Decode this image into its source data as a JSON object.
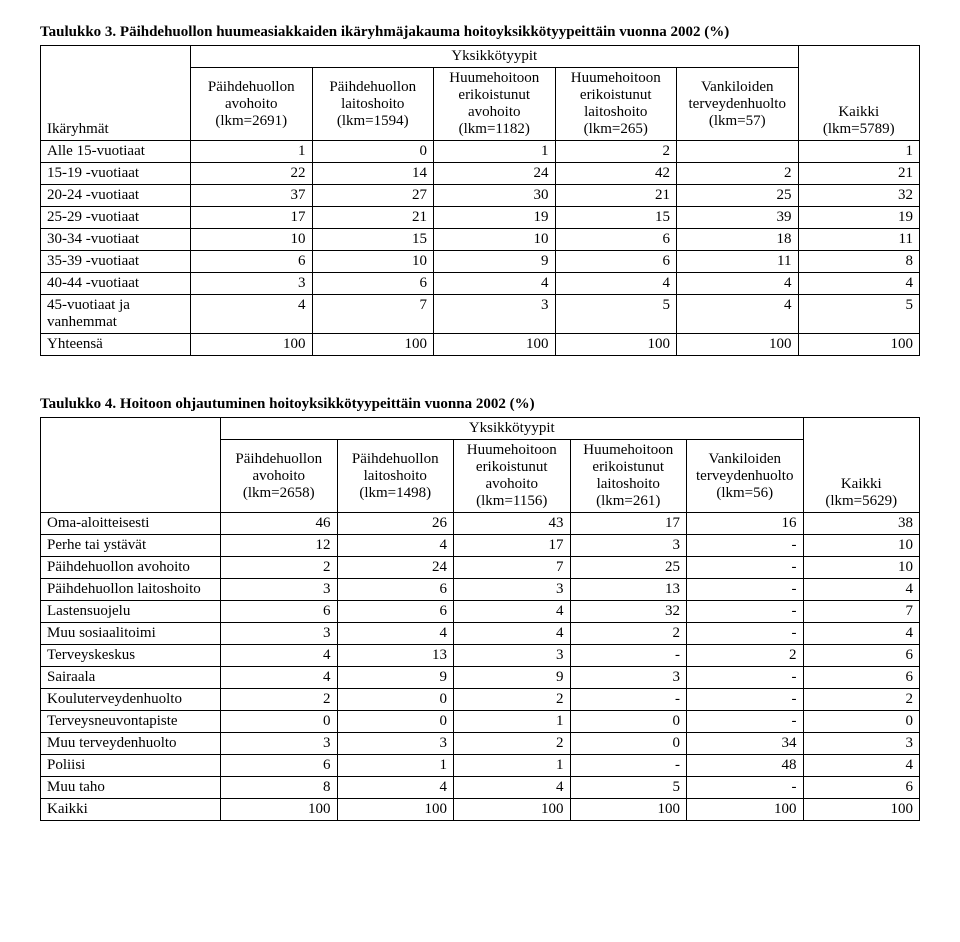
{
  "table3": {
    "title_label": "Taulukko 3.",
    "title_text": "Päihdehuollon huumeasiakkaiden ikäryhmäjakauma hoitoyksikkötyypeittäin vuonna 2002 (%)",
    "rowheader": "Ikäryhmät",
    "superheader": "Yksikkötyypit",
    "columns": [
      "Päihdehuollon avohoito (lkm=2691)",
      "Päihdehuollon laitoshoito (lkm=1594)",
      "Huumehoitoon erikoistunut avohoito (lkm=1182)",
      "Huumehoitoon erikoistunut laitoshoito (lkm=265)",
      "Vankiloiden terveyden­huolto (lkm=57)",
      "Kaikki (lkm=5789)"
    ],
    "rows": [
      {
        "label": "Alle 15-vuotiaat",
        "v": [
          "1",
          "0",
          "1",
          "2",
          "",
          "1"
        ]
      },
      {
        "label": "15-19 -vuotiaat",
        "v": [
          "22",
          "14",
          "24",
          "42",
          "2",
          "21"
        ]
      },
      {
        "label": "20-24 -vuotiaat",
        "v": [
          "37",
          "27",
          "30",
          "21",
          "25",
          "32"
        ]
      },
      {
        "label": "25-29 -vuotiaat",
        "v": [
          "17",
          "21",
          "19",
          "15",
          "39",
          "19"
        ]
      },
      {
        "label": "30-34 -vuotiaat",
        "v": [
          "10",
          "15",
          "10",
          "6",
          "18",
          "11"
        ]
      },
      {
        "label": "35-39 -vuotiaat",
        "v": [
          "6",
          "10",
          "9",
          "6",
          "11",
          "8"
        ]
      },
      {
        "label": "40-44 -vuotiaat",
        "v": [
          "3",
          "6",
          "4",
          "4",
          "4",
          "4"
        ]
      },
      {
        "label": "45-vuotiaat ja vanhemmat",
        "v": [
          "4",
          "7",
          "3",
          "5",
          "4",
          "5"
        ]
      },
      {
        "label": "Yhteensä",
        "v": [
          "100",
          "100",
          "100",
          "100",
          "100",
          "100"
        ]
      }
    ]
  },
  "table4": {
    "title_label": "Taulukko 4.",
    "title_text": "Hoitoon ohjautuminen hoitoyksikkötyypeittäin vuonna 2002 (%)",
    "rowheader": "",
    "superheader": "Yksikkötyypit",
    "columns": [
      "Päihdehuollon avohoito (lkm=2658)",
      "Päihdehuollon laitoshoito (lkm=1498)",
      "Huumehoitoon erikoistunut avohoito (lkm=1156)",
      "Huumehoitoon erikoistunut laitoshoito (lkm=261)",
      "Vankiloiden terveyden­huolto (lkm=56)",
      "Kaikki (lkm=5629)"
    ],
    "rows": [
      {
        "label": "Oma-aloitteisesti",
        "v": [
          "46",
          "26",
          "43",
          "17",
          "16",
          "38"
        ]
      },
      {
        "label": "Perhe tai ystävät",
        "v": [
          "12",
          "4",
          "17",
          "3",
          "-",
          "10"
        ]
      },
      {
        "label": "Päihdehuollon avohoito",
        "v": [
          "2",
          "24",
          "7",
          "25",
          "-",
          "10"
        ]
      },
      {
        "label": "Päihdehuollon laitoshoito",
        "v": [
          "3",
          "6",
          "3",
          "13",
          "-",
          "4"
        ]
      },
      {
        "label": "Lastensuojelu",
        "v": [
          "6",
          "6",
          "4",
          "32",
          "-",
          "7"
        ]
      },
      {
        "label": "Muu sosiaalitoimi",
        "v": [
          "3",
          "4",
          "4",
          "2",
          "-",
          "4"
        ]
      },
      {
        "label": "Terveyskeskus",
        "v": [
          "4",
          "13",
          "3",
          "-",
          "2",
          "6"
        ]
      },
      {
        "label": "Sairaala",
        "v": [
          "4",
          "9",
          "9",
          "3",
          "-",
          "6"
        ]
      },
      {
        "label": "Kouluterveydenhuolto",
        "v": [
          "2",
          "0",
          "2",
          "-",
          "-",
          "2"
        ]
      },
      {
        "label": "Terveysneuvontapiste",
        "v": [
          "0",
          "0",
          "1",
          "0",
          "-",
          "0"
        ]
      },
      {
        "label": "Muu terveydenhuolto",
        "v": [
          "3",
          "3",
          "2",
          "0",
          "34",
          "3"
        ]
      },
      {
        "label": "Poliisi",
        "v": [
          "6",
          "1",
          "1",
          "-",
          "48",
          "4"
        ]
      },
      {
        "label": "Muu taho",
        "v": [
          "8",
          "4",
          "4",
          "5",
          "-",
          "6"
        ]
      },
      {
        "label": "Kaikki",
        "v": [
          "100",
          "100",
          "100",
          "100",
          "100",
          "100"
        ]
      }
    ]
  }
}
